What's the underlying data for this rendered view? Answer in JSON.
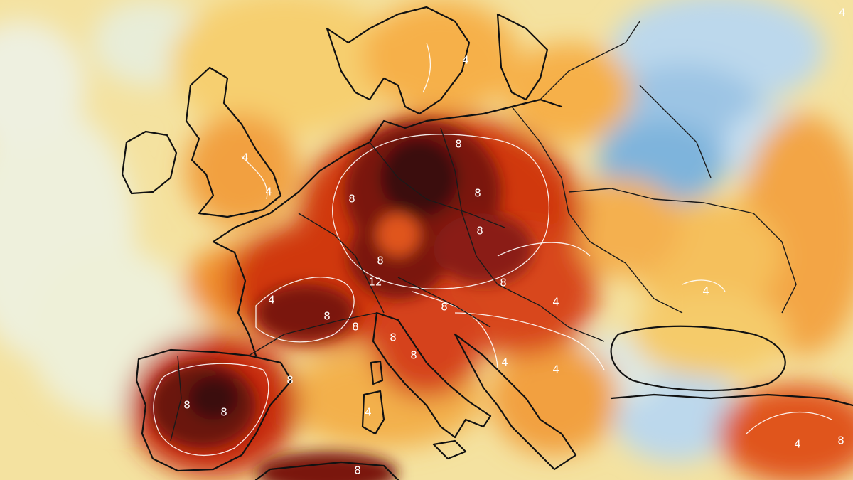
{
  "map": {
    "kind": "temperature-anomaly",
    "colors": {
      "deep_red": "#3a0a0a",
      "dark_red": "#7a1410",
      "red": "#c0290f",
      "orange_red": "#e0541a",
      "orange": "#f08a2a",
      "amber": "#f6b04a",
      "yellow": "#f8d67a",
      "pale_yellow": "#f6e8ac",
      "cream": "#eef0d8",
      "pale_blue": "#c9e0ef",
      "blue": "#7eb4dc",
      "deep_blue": "#4a8cc6",
      "isoline": "#ffffff",
      "coastline": "#111111"
    },
    "contour_labels": [
      {
        "id": "uk-4",
        "text": "4"
      },
      {
        "id": "uk-4b",
        "text": "4"
      },
      {
        "id": "france-4",
        "text": "4"
      },
      {
        "id": "germany-8a",
        "text": "8"
      },
      {
        "id": "germany-8b",
        "text": "8"
      },
      {
        "id": "germany-8c",
        "text": "8"
      },
      {
        "id": "poland-8",
        "text": "8"
      },
      {
        "id": "czech-8",
        "text": "8"
      },
      {
        "id": "swiss-8",
        "text": "8"
      },
      {
        "id": "alps-12",
        "text": "12"
      },
      {
        "id": "alps-8",
        "text": "8"
      },
      {
        "id": "france-8a",
        "text": "8"
      },
      {
        "id": "france-8b",
        "text": "8"
      },
      {
        "id": "italy-8a",
        "text": "8"
      },
      {
        "id": "italy-8b",
        "text": "8"
      },
      {
        "id": "balkan-4a",
        "text": "4"
      },
      {
        "id": "balkan-4b",
        "text": "4"
      },
      {
        "id": "romania-4",
        "text": "4"
      },
      {
        "id": "ukraine-4",
        "text": "4"
      },
      {
        "id": "spain-8a",
        "text": "8"
      },
      {
        "id": "spain-8b",
        "text": "8"
      },
      {
        "id": "spain-8c",
        "text": "8"
      },
      {
        "id": "sardinia-4",
        "text": "4"
      },
      {
        "id": "africa-8",
        "text": "8"
      },
      {
        "id": "turkey-4",
        "text": "4"
      },
      {
        "id": "turkey-8",
        "text": "8"
      },
      {
        "id": "scand-4",
        "text": "4"
      },
      {
        "id": "corner-4",
        "text": "4"
      }
    ]
  }
}
